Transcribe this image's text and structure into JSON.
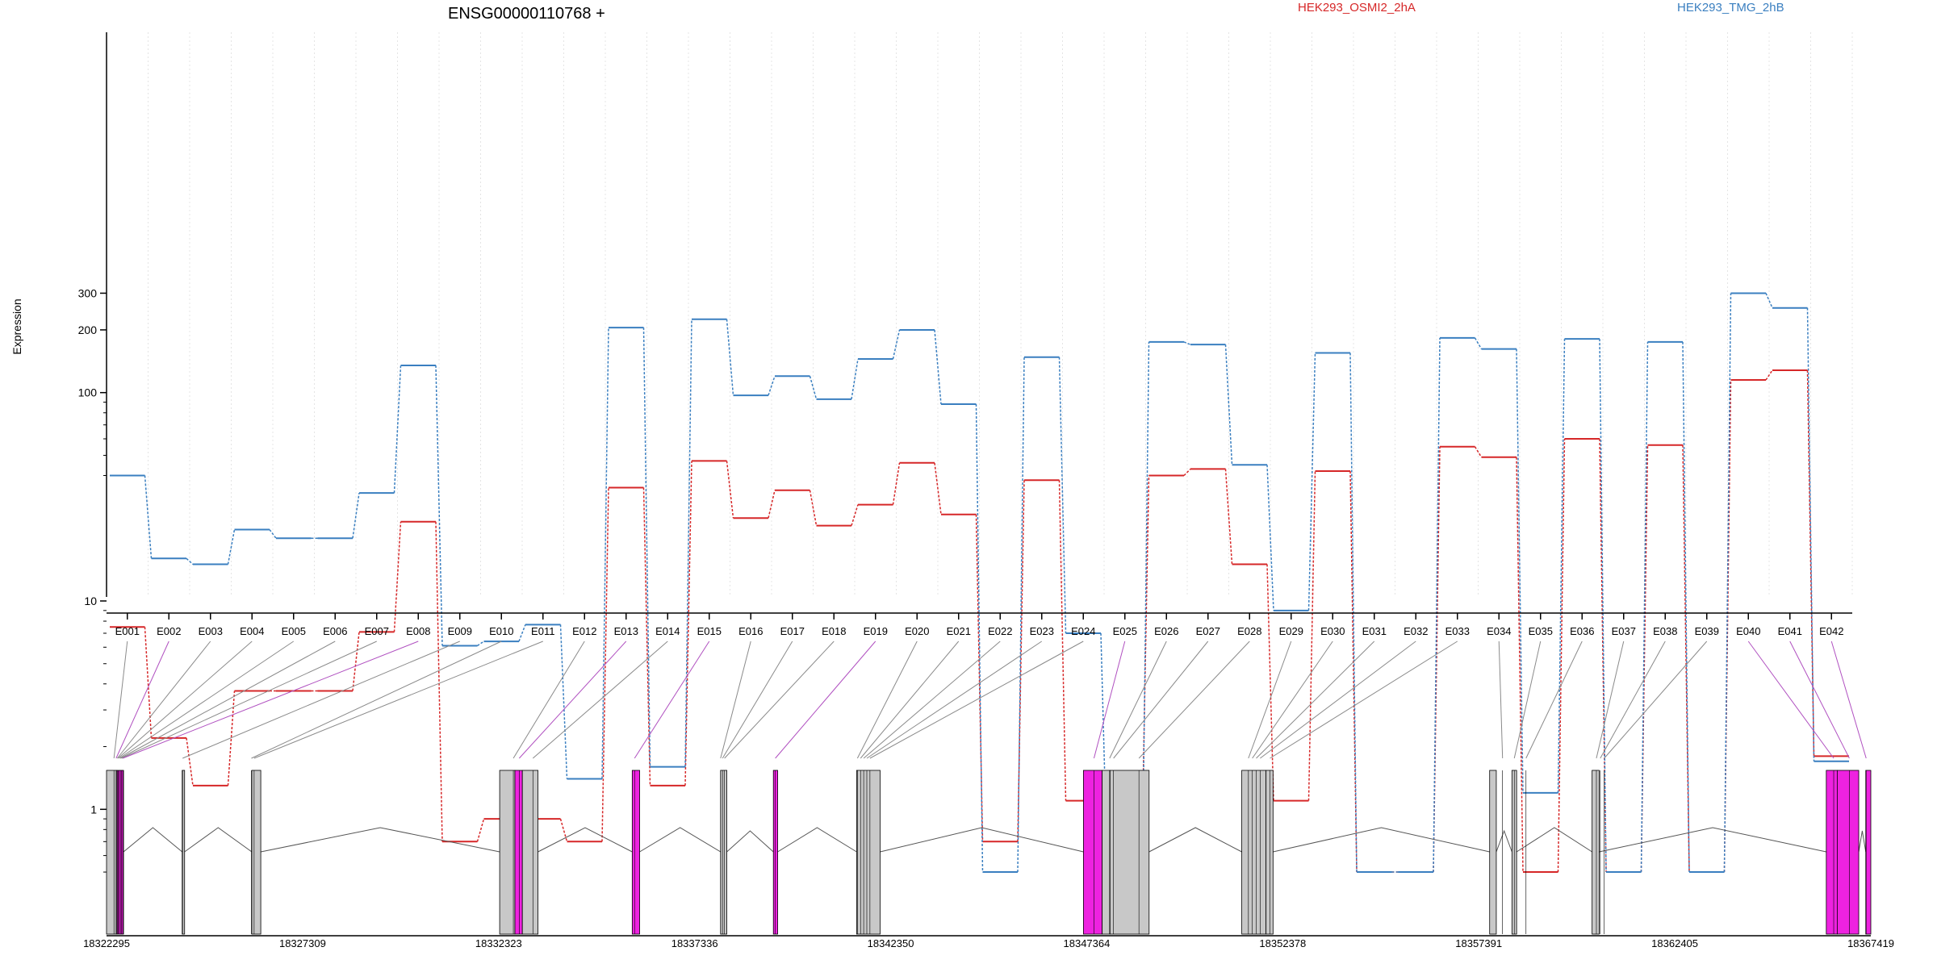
{
  "chart_data": {
    "type": "line",
    "title": "ENSG00000110768 +",
    "ylabel": "Expression",
    "xlabel": "",
    "y_scale": "log",
    "ylim": [
      0.5,
      350
    ],
    "y_ticks": [
      {
        "value": 1,
        "label": "1"
      },
      {
        "value": 10,
        "label": "10"
      },
      {
        "value": 100,
        "label": "100"
      },
      {
        "value": 200,
        "label": "200"
      },
      {
        "value": 300,
        "label": "300"
      }
    ],
    "grid": "vertical dotted lines at exon boundaries",
    "legend": "top-right",
    "categories": [
      "E001",
      "E002",
      "E003",
      "E004",
      "E005",
      "E006",
      "E007",
      "E008",
      "E009",
      "E010",
      "E011",
      "E012",
      "E013",
      "E014",
      "E015",
      "E016",
      "E017",
      "E018",
      "E019",
      "E020",
      "E021",
      "E022",
      "E023",
      "E024",
      "E025",
      "E026",
      "E027",
      "E028",
      "E029",
      "E030",
      "E031",
      "E032",
      "E033",
      "E034",
      "E035",
      "E036",
      "E037",
      "E038",
      "E039",
      "E040",
      "E041",
      "E042"
    ],
    "series": [
      {
        "name": "HEK293_OSMI2_2hA",
        "color": "#d62728",
        "values": [
          7.5,
          2.2,
          1.3,
          3.7,
          3.7,
          3.7,
          7.1,
          24,
          0.7,
          0.9,
          0.9,
          0.7,
          35,
          1.3,
          47,
          25,
          34,
          23,
          29,
          46,
          26,
          0.7,
          38,
          1.1,
          0.9,
          40,
          43,
          15,
          1.1,
          42,
          0.5,
          0.5,
          55,
          49,
          0.5,
          60,
          0.5,
          56,
          0.5,
          115,
          128,
          1.8
        ]
      },
      {
        "name": "HEK293_TMG_2hB",
        "color": "#3a7fc0",
        "values": [
          40,
          16,
          15,
          22,
          20,
          20,
          33,
          135,
          6.1,
          6.4,
          7.7,
          1.4,
          205,
          1.6,
          225,
          97,
          120,
          93,
          145,
          200,
          88,
          0.5,
          148,
          7.0,
          0.5,
          175,
          170,
          45,
          9.0,
          155,
          0.5,
          0.5,
          183,
          162,
          1.2,
          181,
          0.5,
          175,
          0.5,
          300,
          255,
          1.7
        ]
      }
    ],
    "exon_highlight": [
      false,
      true,
      false,
      false,
      false,
      false,
      false,
      true,
      false,
      false,
      false,
      false,
      true,
      false,
      true,
      false,
      false,
      false,
      true,
      false,
      false,
      false,
      false,
      false,
      true,
      false,
      false,
      false,
      false,
      false,
      false,
      false,
      false,
      false,
      false,
      false,
      false,
      false,
      false,
      true,
      true,
      true
    ],
    "genomic_ticks": [
      "18322295",
      "18327309",
      "18332323",
      "18337336",
      "18342350",
      "18347364",
      "18352378",
      "18357391",
      "18362405",
      "18367419"
    ],
    "genomic_range": [
      18322295,
      18367419
    ],
    "exon_mapping": [
      {
        "g": 18322485,
        "h": false
      },
      {
        "g": 18322540,
        "h": true
      },
      {
        "g": 18322570,
        "h": false
      },
      {
        "g": 18322590,
        "h": false
      },
      {
        "g": 18322620,
        "h": false
      },
      {
        "g": 18322650,
        "h": false
      },
      {
        "g": 18322680,
        "h": false
      },
      {
        "g": 18322710,
        "h": true
      },
      {
        "g": 18324240,
        "h": false
      },
      {
        "g": 18326000,
        "h": false
      },
      {
        "g": 18326070,
        "h": false
      },
      {
        "g": 18332700,
        "h": false
      },
      {
        "g": 18332850,
        "h": true
      },
      {
        "g": 18333200,
        "h": false
      },
      {
        "g": 18335800,
        "h": true
      },
      {
        "g": 18338000,
        "h": false
      },
      {
        "g": 18338050,
        "h": false
      },
      {
        "g": 18338100,
        "h": false
      },
      {
        "g": 18339400,
        "h": true
      },
      {
        "g": 18341500,
        "h": false
      },
      {
        "g": 18341580,
        "h": false
      },
      {
        "g": 18341660,
        "h": false
      },
      {
        "g": 18341740,
        "h": false
      },
      {
        "g": 18341820,
        "h": false
      },
      {
        "g": 18347550,
        "h": true
      },
      {
        "g": 18347950,
        "h": false
      },
      {
        "g": 18348050,
        "h": false
      },
      {
        "g": 18348700,
        "h": false
      },
      {
        "g": 18351500,
        "h": false
      },
      {
        "g": 18351600,
        "h": false
      },
      {
        "g": 18351700,
        "h": false
      },
      {
        "g": 18351800,
        "h": false
      },
      {
        "g": 18352050,
        "h": false
      },
      {
        "g": 18358000,
        "h": false
      },
      {
        "g": 18358300,
        "h": false
      },
      {
        "g": 18358600,
        "h": false
      },
      {
        "g": 18360400,
        "h": false
      },
      {
        "g": 18360500,
        "h": false
      },
      {
        "g": 18360600,
        "h": false
      },
      {
        "g": 18366470,
        "h": true
      },
      {
        "g": 18366870,
        "h": true
      },
      {
        "g": 18367300,
        "h": true
      }
    ],
    "gene_model_blocks": [
      {
        "start": 18322295,
        "end": 18322560,
        "h": false
      },
      {
        "start": 18322560,
        "end": 18322730,
        "h": true
      },
      {
        "start": 18324230,
        "end": 18324290,
        "h": false
      },
      {
        "start": 18326010,
        "end": 18326240,
        "h": false
      },
      {
        "start": 18332350,
        "end": 18332740,
        "h": false
      },
      {
        "start": 18332740,
        "end": 18332930,
        "h": true
      },
      {
        "start": 18332930,
        "end": 18333330,
        "h": false
      },
      {
        "start": 18335740,
        "end": 18335930,
        "h": true
      },
      {
        "start": 18338000,
        "end": 18338160,
        "h": false
      },
      {
        "start": 18339350,
        "end": 18339460,
        "h": true
      },
      {
        "start": 18341480,
        "end": 18342080,
        "h": false
      },
      {
        "start": 18347280,
        "end": 18347760,
        "h": true
      },
      {
        "start": 18347760,
        "end": 18347960,
        "h": false
      },
      {
        "start": 18347960,
        "end": 18348960,
        "h": false
      },
      {
        "start": 18351330,
        "end": 18351950,
        "h": false
      },
      {
        "start": 18351950,
        "end": 18352130,
        "h": false
      },
      {
        "start": 18357670,
        "end": 18357840,
        "h": false
      },
      {
        "start": 18358240,
        "end": 18358360,
        "h": false
      },
      {
        "start": 18360290,
        "end": 18360470,
        "h": false
      },
      {
        "start": 18366280,
        "end": 18366560,
        "h": true
      },
      {
        "start": 18366560,
        "end": 18367110,
        "h": true
      },
      {
        "start": 18367290,
        "end": 18367419,
        "h": true
      }
    ]
  }
}
